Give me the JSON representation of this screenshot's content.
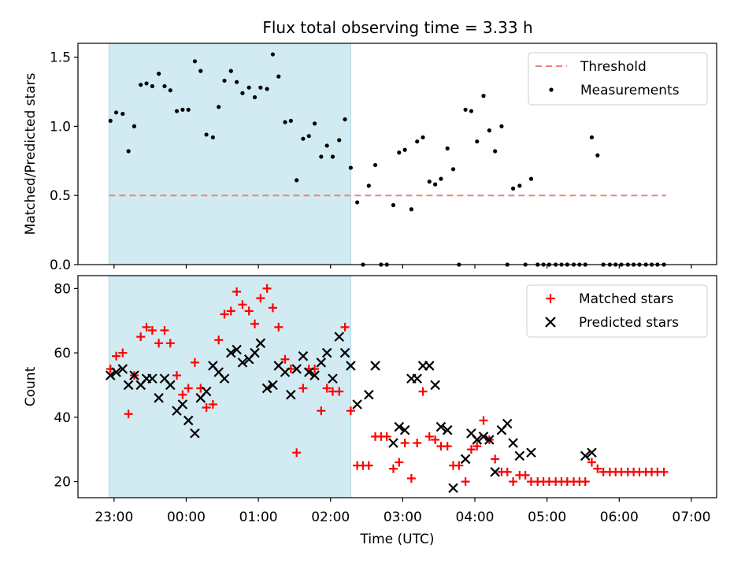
{
  "title": "Flux total observing time = 3.33 h",
  "chart_data": [
    {
      "type": "scatter",
      "ylabel": "Matched/Predicted stars",
      "xlabel": "",
      "ylim": [
        0,
        1.6
      ],
      "yticks": [
        0.0,
        0.5,
        1.0,
        1.5
      ],
      "ytick_labels": [
        "0.0",
        "0.5",
        "1.0",
        "1.5"
      ],
      "xlim": [
        -0.5,
        8.35
      ],
      "shaded_span": [
        -0.07,
        3.28
      ],
      "legend_position": "top-right",
      "threshold": {
        "name": "Threshold",
        "y": 0.5,
        "x_range": [
          -0.07,
          7.65
        ],
        "color": "#f08080"
      },
      "series": [
        {
          "name": "Measurements",
          "color": "#000000",
          "x": [
            -0.05,
            0.03,
            0.12,
            0.2,
            0.28,
            0.37,
            0.45,
            0.53,
            0.62,
            0.7,
            0.78,
            0.87,
            0.95,
            1.03,
            1.12,
            1.2,
            1.28,
            1.37,
            1.45,
            1.53,
            1.62,
            1.7,
            1.78,
            1.87,
            1.95,
            2.03,
            2.12,
            2.2,
            2.28,
            2.37,
            2.45,
            2.53,
            2.62,
            2.7,
            2.78,
            2.87,
            2.95,
            3.03,
            3.12,
            3.2,
            3.28,
            3.37,
            3.45,
            3.53,
            3.62,
            3.7,
            3.78,
            3.87,
            3.95,
            4.03,
            4.12,
            4.2,
            4.28,
            4.37,
            4.45,
            4.53,
            4.62,
            4.7,
            4.78,
            4.87,
            4.95,
            5.03,
            5.12,
            5.2,
            5.28,
            5.37,
            5.45,
            5.53,
            5.62,
            5.7,
            5.78,
            5.87,
            5.95,
            6.03,
            6.12,
            6.2,
            6.28,
            6.37,
            6.45,
            6.53,
            6.62,
            6.7,
            6.78,
            6.87,
            6.95,
            7.03,
            7.12,
            7.2,
            7.28,
            7.37,
            7.45,
            7.53,
            7.62
          ],
          "y": [
            1.04,
            1.1,
            1.09,
            0.82,
            1.0,
            1.3,
            1.31,
            1.29,
            1.38,
            1.29,
            1.26,
            1.11,
            1.12,
            1.12,
            1.47,
            1.4,
            0.94,
            0.92,
            1.14,
            1.33,
            1.4,
            1.32,
            1.24,
            1.28,
            1.21,
            1.28,
            1.27,
            1.52,
            1.36,
            1.03,
            1.04,
            0.61,
            0.91,
            0.93,
            1.02,
            0.78,
            0.86,
            0.78,
            0.9,
            1.05,
            0.7,
            0.45,
            0.0,
            0.57,
            0.72,
            0.0,
            0.0,
            0.43,
            0.81,
            0.83,
            0.4,
            0.89,
            0.92,
            0.6,
            0.58,
            0.62,
            0.84,
            0.69,
            0.0,
            1.12,
            1.11,
            0.89,
            1.22,
            0.97,
            0.82,
            1.0,
            0.0,
            0.55,
            0.57,
            0.0,
            0.62,
            0.0,
            0.0,
            0.0,
            0.0,
            0.0,
            0.0,
            0.0,
            0.0,
            0.0,
            0.92,
            0.79,
            0.0,
            0.0,
            0.0,
            0.0,
            0.0,
            0.0,
            0.0,
            0.0,
            0.0,
            0.0,
            0.0
          ]
        }
      ]
    },
    {
      "type": "scatter",
      "ylabel": "Count",
      "xlabel": "Time (UTC)",
      "ylim": [
        15,
        84
      ],
      "yticks": [
        20,
        40,
        60,
        80
      ],
      "ytick_labels": [
        "20",
        "40",
        "60",
        "80"
      ],
      "xlim": [
        -0.5,
        8.35
      ],
      "xticks": [
        0,
        1,
        2,
        3,
        4,
        5,
        6,
        7,
        8
      ],
      "xtick_labels": [
        "23:00",
        "00:00",
        "01:00",
        "02:00",
        "03:00",
        "04:00",
        "05:00",
        "06:00",
        "07:00"
      ],
      "shaded_span": [
        -0.07,
        3.28
      ],
      "legend_position": "top-right",
      "series": [
        {
          "name": "Matched stars",
          "marker": "plus",
          "color": "#ff0000",
          "x": [
            -0.05,
            0.03,
            0.12,
            0.2,
            0.28,
            0.37,
            0.45,
            0.53,
            0.62,
            0.7,
            0.78,
            0.87,
            0.95,
            1.03,
            1.12,
            1.2,
            1.28,
            1.37,
            1.45,
            1.53,
            1.62,
            1.7,
            1.78,
            1.87,
            1.95,
            2.03,
            2.12,
            2.2,
            2.28,
            2.37,
            2.45,
            2.53,
            2.62,
            2.7,
            2.78,
            2.87,
            2.95,
            3.03,
            3.12,
            3.2,
            3.28,
            3.37,
            3.45,
            3.53,
            3.62,
            3.7,
            3.78,
            3.87,
            3.95,
            4.03,
            4.12,
            4.2,
            4.28,
            4.37,
            4.45,
            4.53,
            4.62,
            4.7,
            4.78,
            4.87,
            4.95,
            5.03,
            5.12,
            5.2,
            5.28,
            5.37,
            5.45,
            5.53,
            5.62,
            5.7,
            5.78,
            5.87,
            5.95,
            6.03,
            6.12,
            6.2,
            6.28,
            6.37,
            6.45,
            6.53,
            6.62,
            6.7,
            6.78,
            6.87,
            6.95,
            7.03,
            7.12,
            7.2,
            7.28,
            7.37,
            7.45,
            7.53,
            7.62
          ],
          "y": [
            55,
            59,
            60,
            41,
            53,
            65,
            68,
            67,
            63,
            67,
            63,
            53,
            47,
            49,
            57,
            49,
            43,
            44,
            64,
            72,
            73,
            79,
            75,
            73,
            69,
            77,
            80,
            74,
            68,
            58,
            55,
            29,
            49,
            55,
            55,
            42,
            49,
            48,
            48,
            68,
            42,
            25,
            25,
            25,
            34,
            34,
            34,
            24,
            26,
            32,
            21,
            32,
            48,
            34,
            33,
            31,
            31,
            25,
            25,
            20,
            30,
            31,
            39,
            33,
            27,
            23,
            23,
            20,
            22,
            22,
            20,
            20,
            20,
            20,
            20,
            20,
            20,
            20,
            20,
            20,
            26,
            24,
            23,
            23,
            23,
            23,
            23,
            23,
            23,
            23,
            23,
            23,
            23
          ]
        },
        {
          "name": "Predicted stars",
          "marker": "x",
          "color": "#000000",
          "x": [
            -0.05,
            0.03,
            0.12,
            0.2,
            0.28,
            0.37,
            0.45,
            0.53,
            0.62,
            0.7,
            0.78,
            0.87,
            0.95,
            1.03,
            1.12,
            1.2,
            1.28,
            1.37,
            1.45,
            1.53,
            1.62,
            1.7,
            1.78,
            1.87,
            1.95,
            2.03,
            2.12,
            2.2,
            2.28,
            2.37,
            2.45,
            2.53,
            2.62,
            2.7,
            2.78,
            2.87,
            2.95,
            3.03,
            3.12,
            3.2,
            3.28,
            3.37,
            3.53,
            3.62,
            3.87,
            3.95,
            4.03,
            4.12,
            4.2,
            4.28,
            4.37,
            4.45,
            4.53,
            4.62,
            4.7,
            4.87,
            4.95,
            5.03,
            5.12,
            5.2,
            5.28,
            5.37,
            5.45,
            5.53,
            5.62,
            5.78,
            6.53,
            6.62
          ],
          "y": [
            53,
            54,
            55,
            50,
            53,
            50,
            52,
            52,
            46,
            52,
            50,
            42,
            44,
            39,
            35,
            46,
            48,
            56,
            54,
            52,
            60,
            61,
            57,
            58,
            60,
            63,
            49,
            50,
            56,
            54,
            47,
            55,
            59,
            54,
            53,
            57,
            60,
            52,
            65,
            60,
            56,
            44,
            47,
            56,
            32,
            37,
            36,
            52,
            52,
            56,
            56,
            50,
            37,
            36,
            18,
            27,
            35,
            33,
            34,
            33,
            23,
            36,
            38,
            32,
            28,
            29,
            28,
            29
          ]
        }
      ]
    }
  ]
}
